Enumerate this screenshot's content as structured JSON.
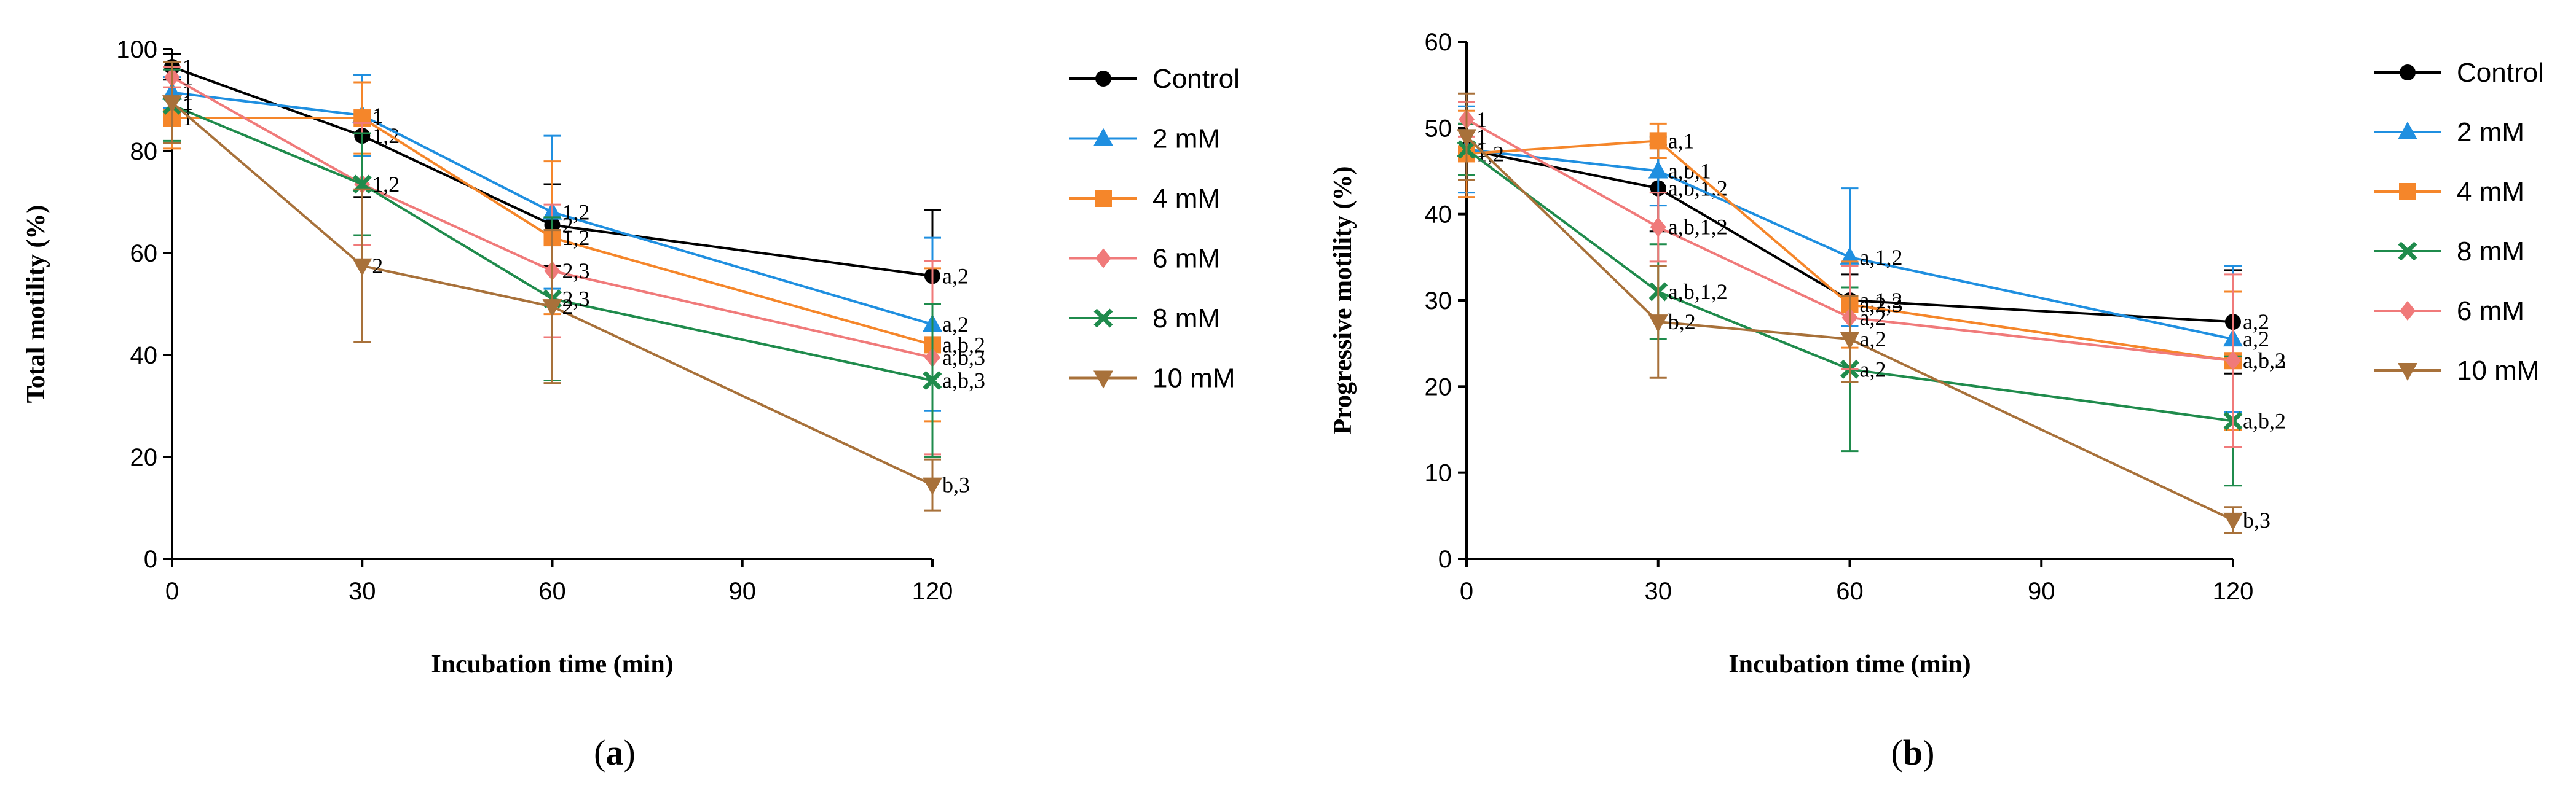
{
  "chart_data": [
    {
      "type": "line",
      "panel_label_prefix": "(",
      "panel_label_letter": "a",
      "panel_label_suffix": ")",
      "xlabel": "Incubation time (min)",
      "ylabel": "Total motility (%)",
      "x": [
        0,
        30,
        60,
        120
      ],
      "xticks": [
        0,
        30,
        60,
        90,
        120
      ],
      "yticks": [
        0,
        20,
        40,
        60,
        80,
        100
      ],
      "xlim": [
        0,
        120
      ],
      "ylim": [
        0,
        100
      ],
      "legend_position": "right",
      "series": [
        {
          "name": "Control",
          "color": "#000000",
          "marker": "circle",
          "values": [
            96.5,
            83,
            65.5,
            55.5
          ],
          "err": [
            2.5,
            12,
            8,
            13
          ],
          "labels": [
            "1",
            "1,2",
            "2",
            "a,2"
          ]
        },
        {
          "name": "2 mM",
          "color": "#1f8fe0",
          "marker": "triangle-up",
          "values": [
            91.5,
            87,
            68,
            46
          ],
          "err": [
            3,
            8,
            15,
            17
          ],
          "labels": [
            "1",
            "1",
            "1,2",
            "a,2"
          ]
        },
        {
          "name": "4 mM",
          "color": "#f5862a",
          "marker": "square",
          "values": [
            86.5,
            86.5,
            63,
            42
          ],
          "err": [
            6,
            7,
            15,
            15
          ],
          "labels": [
            "1",
            "1",
            "1,2",
            "a,b,2"
          ]
        },
        {
          "name": "6 mM",
          "color": "#f07a7a",
          "marker": "diamond",
          "values": [
            94.5,
            73.5,
            56.5,
            39.5
          ],
          "err": [
            2,
            12,
            13,
            19
          ],
          "labels": [
            "1",
            "1,2",
            "2,3",
            "a,b,3"
          ]
        },
        {
          "name": "8 mM",
          "color": "#1f8b4c",
          "marker": "x",
          "values": [
            89,
            73.5,
            51,
            35
          ],
          "err": [
            7,
            10,
            16,
            15
          ],
          "labels": [
            "1",
            "1,2",
            "2,3",
            "a,b,3"
          ]
        },
        {
          "name": "10 mM",
          "color": "#a8713a",
          "marker": "triangle-down",
          "values": [
            89.5,
            57.5,
            49.5,
            14.5
          ],
          "err": [
            8,
            15,
            15,
            5
          ],
          "labels": [
            "1",
            "2",
            "2",
            "b,3"
          ]
        }
      ]
    },
    {
      "type": "line",
      "panel_label_prefix": "(",
      "panel_label_letter": "b",
      "panel_label_suffix": ")",
      "xlabel": "Incubation time (min)",
      "ylabel": "Progressive motility (%)",
      "x": [
        0,
        30,
        60,
        120
      ],
      "xticks": [
        0,
        30,
        60,
        90,
        120
      ],
      "yticks": [
        0,
        10,
        20,
        30,
        40,
        50,
        60
      ],
      "xlim": [
        0,
        120
      ],
      "ylim": [
        0,
        60
      ],
      "legend_position": "right",
      "series": [
        {
          "name": "Control",
          "color": "#000000",
          "marker": "circle",
          "values": [
            47.5,
            43,
            30,
            27.5
          ],
          "err": [
            3,
            5,
            3,
            6
          ],
          "labels": [
            "1",
            "a,b,1,2",
            "a,1,2",
            "a,2"
          ]
        },
        {
          "name": "2 mM",
          "color": "#1f8fe0",
          "marker": "triangle-up",
          "values": [
            47.5,
            45,
            35,
            25.5
          ],
          "err": [
            5,
            4,
            8,
            8.5
          ],
          "labels": [
            "1",
            "a,b,1",
            "a,1,2",
            "a,2"
          ]
        },
        {
          "name": "4 mM",
          "color": "#f5862a",
          "marker": "square",
          "values": [
            47,
            48.5,
            29.5,
            23
          ],
          "err": [
            5,
            2,
            5,
            8
          ],
          "labels": [
            "1,2",
            "a,1",
            "a,2,3",
            "a,b,3"
          ]
        },
        {
          "name": "8 mM",
          "color": "#1f8b4c",
          "marker": "x",
          "values": [
            47.5,
            31,
            22,
            16
          ],
          "err": [
            3,
            5.5,
            9.5,
            7.5
          ],
          "labels": [
            "1",
            "a,b,1,2",
            "a,2",
            "a,b,2"
          ]
        },
        {
          "name": "6 mM",
          "color": "#f07a7a",
          "marker": "diamond",
          "values": [
            51,
            38.5,
            28,
            23
          ],
          "err": [
            2,
            4,
            6,
            10
          ],
          "labels": [
            "1",
            "a,b,1,2",
            "a,2",
            "a,b,2"
          ]
        },
        {
          "name": "10 mM",
          "color": "#a8713a",
          "marker": "triangle-down",
          "values": [
            49,
            27.5,
            25.5,
            4.5
          ],
          "err": [
            5,
            6.5,
            5,
            1.5
          ],
          "labels": [
            "1",
            "b,2",
            "a,2",
            "b,3"
          ]
        }
      ]
    }
  ]
}
